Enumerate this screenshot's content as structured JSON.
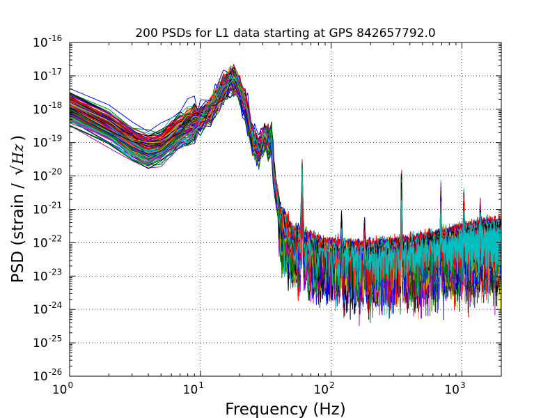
{
  "chart_data": {
    "type": "line",
    "title": "200 PSDs for L1 data starting at GPS 842657792.0",
    "xlabel": "Frequency (Hz)",
    "ylabel_prefix": "PSD (strain / ",
    "ylabel_math": "Hz",
    "ylabel_suffix": ")",
    "xscale": "log",
    "yscale": "log",
    "xlim": [
      1,
      2000
    ],
    "ylim": [
      1e-26,
      1e-16
    ],
    "grid": true,
    "n_series": 200,
    "x_ticks": [
      {
        "value": 1,
        "base": "10",
        "exp": "0"
      },
      {
        "value": 10,
        "base": "10",
        "exp": "1"
      },
      {
        "value": 100,
        "base": "10",
        "exp": "2"
      },
      {
        "value": 1000,
        "base": "10",
        "exp": "3"
      }
    ],
    "y_ticks": [
      {
        "value": 1e-26,
        "base": "10",
        "exp": "-26"
      },
      {
        "value": 1e-25,
        "base": "10",
        "exp": "-25"
      },
      {
        "value": 1e-24,
        "base": "10",
        "exp": "-24"
      },
      {
        "value": 1e-23,
        "base": "10",
        "exp": "-23"
      },
      {
        "value": 1e-22,
        "base": "10",
        "exp": "-22"
      },
      {
        "value": 1e-21,
        "base": "10",
        "exp": "-21"
      },
      {
        "value": 1e-20,
        "base": "10",
        "exp": "-20"
      },
      {
        "value": 1e-19,
        "base": "10",
        "exp": "-19"
      },
      {
        "value": 1e-18,
        "base": "10",
        "exp": "-18"
      },
      {
        "value": 1e-17,
        "base": "10",
        "exp": "-17"
      },
      {
        "value": 1e-16,
        "base": "10",
        "exp": "-16"
      }
    ],
    "envelope": {
      "freq": [
        1,
        2,
        3,
        4,
        5,
        7,
        9,
        12,
        15,
        17,
        19,
        22,
        25,
        28,
        31,
        33,
        35,
        38,
        42,
        50,
        60,
        80,
        100,
        200,
        300,
        500,
        800,
        1000,
        1500,
        2000
      ],
      "psd": [
        1.2e-18,
        3e-19,
        1e-19,
        6e-20,
        8e-20,
        2.5e-19,
        4e-19,
        1e-18,
        4e-18,
        8e-18,
        6e-18,
        1.5e-18,
        1.2e-19,
        6e-20,
        1.5e-19,
        1.2e-19,
        3e-20,
        3e-21,
        6e-22,
        1.8e-22,
        1.2e-22,
        8e-23,
        6e-23,
        5e-23,
        6e-23,
        8e-23,
        1.2e-22,
        1.5e-22,
        2e-22,
        2.2e-22
      ]
    },
    "spread_dex": 1.0,
    "lines_hz": [
      {
        "freq": 35,
        "psd": 2e-19
      },
      {
        "freq": 60,
        "psd": 2.5e-20
      },
      {
        "freq": 120,
        "psd": 5e-22
      },
      {
        "freq": 180,
        "psd": 3e-22
      },
      {
        "freq": 345,
        "psd": 1.5e-20
      },
      {
        "freq": 690,
        "psd": 4e-21
      },
      {
        "freq": 1035,
        "psd": 2e-21
      },
      {
        "freq": 1380,
        "psd": 1.2e-21
      }
    ],
    "colors": [
      "#0000ff",
      "#008000",
      "#ff0000",
      "#00bfbf",
      "#bf00bf",
      "#bfbf00",
      "#000000"
    ]
  }
}
